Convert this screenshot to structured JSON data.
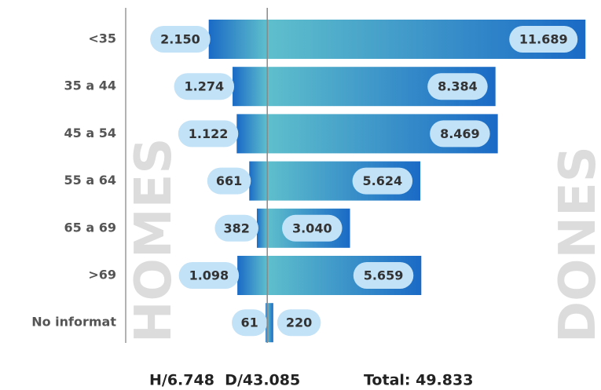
{
  "chart_data": {
    "type": "diverging_bar",
    "categories": [
      "<35",
      "35 a 44",
      "45 a 54",
      "55 a 64",
      "65 a 69",
      ">69",
      "No informat"
    ],
    "series": [
      {
        "name": "HOMES",
        "color": "#1a6ac6",
        "side": "left",
        "values": [
          2150,
          1274,
          1122,
          661,
          382,
          1098,
          61
        ],
        "value_labels": [
          "2.150",
          "1.274",
          "1.122",
          "661",
          "382",
          "1.098",
          "61"
        ]
      },
      {
        "name": "DONES",
        "color": "#1a6ac6",
        "side": "right",
        "values": [
          11689,
          8384,
          8469,
          5624,
          3040,
          5659,
          220
        ],
        "value_labels": [
          "11.689",
          "8.384",
          "8.469",
          "5.624",
          "3.040",
          "5.659",
          "220"
        ]
      }
    ],
    "center_color": "#5fbfcc",
    "label_color": "#c2e2f7",
    "xlim": [
      -5200,
      12000
    ],
    "footer": {
      "totals": "H/6.748  D/43.085",
      "total": "Total: 49.833"
    }
  }
}
